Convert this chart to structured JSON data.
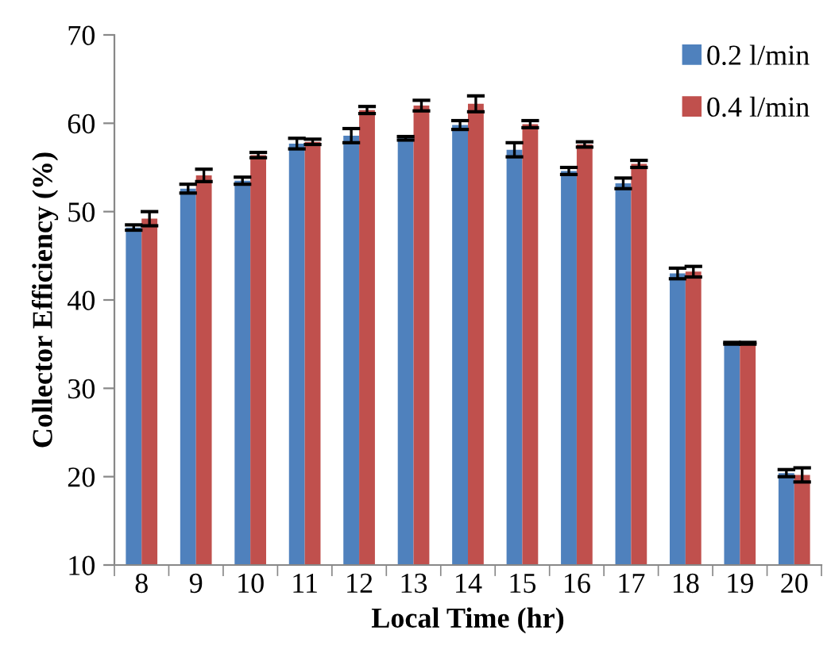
{
  "chart_data": {
    "type": "bar",
    "xlabel": "Local Time (hr)",
    "ylabel": "Collector Efficiency (%)",
    "categories": [
      "8",
      "9",
      "10",
      "11",
      "12",
      "13",
      "14",
      "15",
      "16",
      "17",
      "18",
      "19",
      "20"
    ],
    "series": [
      {
        "name": "0.2 l/min",
        "color": "#4f81bd",
        "values": [
          48.2,
          52.6,
          53.5,
          57.7,
          58.6,
          58.3,
          59.8,
          57.0,
          54.6,
          53.2,
          43.0,
          35.1,
          20.4
        ],
        "errors": [
          0.3,
          0.5,
          0.4,
          0.6,
          0.8,
          0.2,
          0.5,
          0.8,
          0.4,
          0.6,
          0.6,
          0.1,
          0.4
        ]
      },
      {
        "name": "0.4 l/min",
        "color": "#c0504d",
        "values": [
          49.2,
          54.1,
          56.4,
          57.9,
          61.5,
          62.0,
          62.2,
          59.9,
          57.6,
          55.4,
          43.2,
          35.1,
          20.2
        ],
        "errors": [
          0.8,
          0.7,
          0.3,
          0.3,
          0.4,
          0.6,
          0.9,
          0.4,
          0.3,
          0.4,
          0.6,
          0.1,
          0.8
        ]
      }
    ],
    "ylim": [
      10,
      70
    ],
    "yticks": [
      10,
      20,
      30,
      40,
      50,
      60,
      70
    ],
    "grid": false,
    "legend": "top right"
  }
}
